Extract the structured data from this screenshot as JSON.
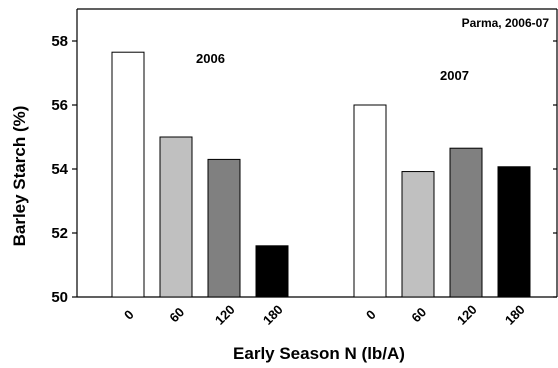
{
  "chart_data": {
    "type": "bar",
    "title": "Parma, 2006-07",
    "xlabel": "Early Season N (lb/A)",
    "ylabel": "Barley Starch (%)",
    "ylim": [
      50,
      59
    ],
    "yticks": [
      "50",
      "52",
      "54",
      "56",
      "58"
    ],
    "grid": false,
    "categories": [
      "0",
      "60",
      "120",
      "180"
    ],
    "bar_colors": [
      "#ffffff",
      "#c0c0c0",
      "#808080",
      "#000000"
    ],
    "groups": [
      {
        "label": "2006",
        "values": [
          57.65,
          55.0,
          54.3,
          51.6
        ]
      },
      {
        "label": "2007",
        "values": [
          56.0,
          53.92,
          54.65,
          54.07
        ]
      }
    ]
  }
}
